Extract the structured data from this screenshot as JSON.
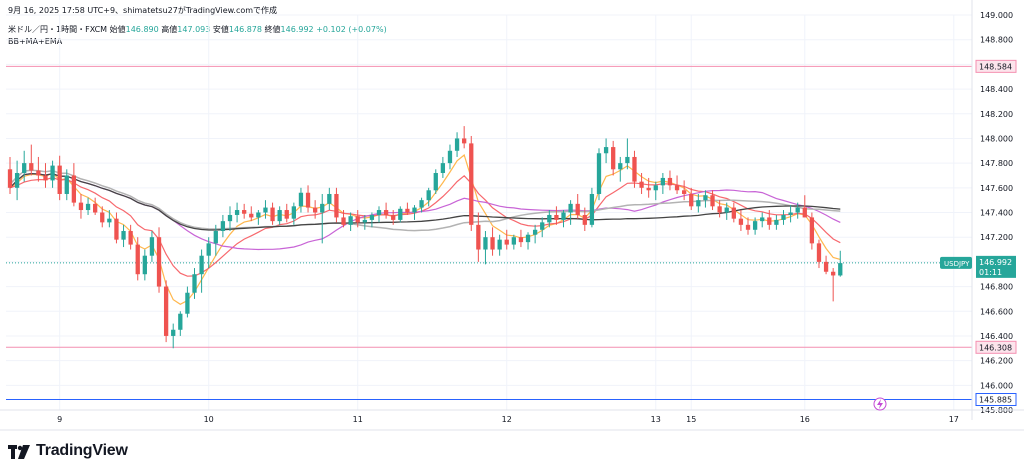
{
  "header": {
    "snapshot": "9月 16, 2025 17:58 UTC+9、shimatetsu27がTradingView.comで作成",
    "symbol": "米ドル／円・1時間・FXCM",
    "open_label": "始値",
    "open": "146.890",
    "high_label": "高値",
    "high": "147.093",
    "low_label": "安値",
    "low": "146.878",
    "close_label": "終値",
    "close": "146.992",
    "change": "+0.102 (+0.07%)",
    "indicators": "BB+MA+EMA"
  },
  "footer": {
    "brand": "TradingView"
  },
  "colors": {
    "up": "#26a69a",
    "down": "#ef5350",
    "hline_pink": "#f48fb1",
    "hline_blue": "#2962ff",
    "price_tag": "#26a69a"
  },
  "icon": "lightning-icon",
  "chart_data": {
    "type": "candlestick",
    "symbol": "USDJPY",
    "ylim": [
      145.8,
      149.0
    ],
    "xlim": [
      0,
      135
    ],
    "y_ticks": [
      "149.000",
      "148.800",
      "148.600",
      "148.400",
      "148.200",
      "148.000",
      "147.800",
      "147.600",
      "147.400",
      "147.200",
      "147.000",
      "146.800",
      "146.600",
      "146.400",
      "146.200",
      "146.000",
      "145.800"
    ],
    "x_ticks": [
      {
        "label": "9",
        "x": 7
      },
      {
        "label": "10",
        "x": 28
      },
      {
        "label": "11",
        "x": 49
      },
      {
        "label": "12",
        "x": 70
      },
      {
        "label": "13",
        "x": 91
      },
      {
        "label": "15",
        "x": 96
      },
      {
        "label": "16",
        "x": 112
      },
      {
        "label": "17",
        "x": 133
      }
    ],
    "horizontal_lines": [
      {
        "value": 148.584,
        "label": "148.584",
        "color": "#f48fb1"
      },
      {
        "value": 146.308,
        "label": "146.308",
        "color": "#f48fb1"
      },
      {
        "value": 145.885,
        "label": "145.885",
        "color": "#2962ff"
      }
    ],
    "current_price": {
      "value": 146.992,
      "label": "146.992",
      "symbol": "USDJPY",
      "countdown": "01:11"
    },
    "candles": [
      [
        147.75,
        147.85,
        147.55,
        147.6
      ],
      [
        147.6,
        147.82,
        147.5,
        147.72
      ],
      [
        147.72,
        147.9,
        147.65,
        147.8
      ],
      [
        147.8,
        147.95,
        147.7,
        147.74
      ],
      [
        147.74,
        147.85,
        147.65,
        147.7
      ],
      [
        147.7,
        147.8,
        147.6,
        147.66
      ],
      [
        147.66,
        147.82,
        147.6,
        147.78
      ],
      [
        147.78,
        147.86,
        147.5,
        147.55
      ],
      [
        147.55,
        147.75,
        147.5,
        147.7
      ],
      [
        147.7,
        147.8,
        147.45,
        147.48
      ],
      [
        147.48,
        147.55,
        147.35,
        147.42
      ],
      [
        147.42,
        147.52,
        147.38,
        147.47
      ],
      [
        147.47,
        147.52,
        147.38,
        147.4
      ],
      [
        147.4,
        147.45,
        147.28,
        147.32
      ],
      [
        147.32,
        147.42,
        147.28,
        147.35
      ],
      [
        147.35,
        147.4,
        147.15,
        147.18
      ],
      [
        147.18,
        147.3,
        147.12,
        147.25
      ],
      [
        147.25,
        147.3,
        147.1,
        147.14
      ],
      [
        147.14,
        147.2,
        146.85,
        146.9
      ],
      [
        146.9,
        147.1,
        146.85,
        147.05
      ],
      [
        147.05,
        147.25,
        147.0,
        147.2
      ],
      [
        147.2,
        147.28,
        146.75,
        146.8
      ],
      [
        146.8,
        146.85,
        146.35,
        146.4
      ],
      [
        146.4,
        146.5,
        146.3,
        146.45
      ],
      [
        146.45,
        146.6,
        146.4,
        146.58
      ],
      [
        146.58,
        146.8,
        146.55,
        146.75
      ],
      [
        146.75,
        146.95,
        146.7,
        146.9
      ],
      [
        146.9,
        147.1,
        146.75,
        147.05
      ],
      [
        147.05,
        147.2,
        146.95,
        147.15
      ],
      [
        147.15,
        147.3,
        147.05,
        147.25
      ],
      [
        147.25,
        147.38,
        147.2,
        147.33
      ],
      [
        147.33,
        147.45,
        147.25,
        147.38
      ],
      [
        147.38,
        147.48,
        147.32,
        147.42
      ],
      [
        147.42,
        147.47,
        147.35,
        147.39
      ],
      [
        147.39,
        147.45,
        147.33,
        147.36
      ],
      [
        147.36,
        147.42,
        147.3,
        147.4
      ],
      [
        147.4,
        147.5,
        147.35,
        147.44
      ],
      [
        147.44,
        147.48,
        147.3,
        147.33
      ],
      [
        147.33,
        147.45,
        147.3,
        147.42
      ],
      [
        147.42,
        147.47,
        147.32,
        147.35
      ],
      [
        147.35,
        147.48,
        147.3,
        147.45
      ],
      [
        147.45,
        147.6,
        147.4,
        147.56
      ],
      [
        147.56,
        147.62,
        147.4,
        147.44
      ],
      [
        147.44,
        147.5,
        147.35,
        147.4
      ],
      [
        147.4,
        147.55,
        147.15,
        147.47
      ],
      [
        147.47,
        147.6,
        147.42,
        147.55
      ],
      [
        147.55,
        147.6,
        147.32,
        147.36
      ],
      [
        147.36,
        147.42,
        147.28,
        147.3
      ],
      [
        147.3,
        147.4,
        147.25,
        147.37
      ],
      [
        147.37,
        147.42,
        147.28,
        147.32
      ],
      [
        147.32,
        147.38,
        147.26,
        147.34
      ],
      [
        147.34,
        147.4,
        147.28,
        147.38
      ],
      [
        147.38,
        147.45,
        147.32,
        147.42
      ],
      [
        147.42,
        147.48,
        147.35,
        147.38
      ],
      [
        147.38,
        147.42,
        147.3,
        147.34
      ],
      [
        147.34,
        147.45,
        147.32,
        147.43
      ],
      [
        147.43,
        147.48,
        147.38,
        147.4
      ],
      [
        147.4,
        147.46,
        147.34,
        147.44
      ],
      [
        147.44,
        147.52,
        147.4,
        147.5
      ],
      [
        147.5,
        147.6,
        147.45,
        147.58
      ],
      [
        147.58,
        147.75,
        147.55,
        147.72
      ],
      [
        147.72,
        147.85,
        147.68,
        147.8
      ],
      [
        147.8,
        147.95,
        147.75,
        147.9
      ],
      [
        147.9,
        148.05,
        147.85,
        148.0
      ],
      [
        148.0,
        148.1,
        147.92,
        147.96
      ],
      [
        147.96,
        148.02,
        147.25,
        147.3
      ],
      [
        147.3,
        147.4,
        147.0,
        147.1
      ],
      [
        147.1,
        147.25,
        146.98,
        147.2
      ],
      [
        147.2,
        147.28,
        147.05,
        147.1
      ],
      [
        147.1,
        147.22,
        147.05,
        147.18
      ],
      [
        147.18,
        147.26,
        147.1,
        147.14
      ],
      [
        147.14,
        147.22,
        147.1,
        147.2
      ],
      [
        147.2,
        147.26,
        147.12,
        147.16
      ],
      [
        147.16,
        147.24,
        147.1,
        147.22
      ],
      [
        147.22,
        147.3,
        147.15,
        147.26
      ],
      [
        147.26,
        147.36,
        147.2,
        147.32
      ],
      [
        147.32,
        147.42,
        147.28,
        147.38
      ],
      [
        147.38,
        147.45,
        147.3,
        147.34
      ],
      [
        147.34,
        147.42,
        147.28,
        147.4
      ],
      [
        147.4,
        147.5,
        147.3,
        147.47
      ],
      [
        147.47,
        147.55,
        147.35,
        147.38
      ],
      [
        147.38,
        147.44,
        147.25,
        147.3
      ],
      [
        147.3,
        147.6,
        147.28,
        147.55
      ],
      [
        147.55,
        147.92,
        147.5,
        147.88
      ],
      [
        147.88,
        148.0,
        147.8,
        147.93
      ],
      [
        147.93,
        147.98,
        147.7,
        147.75
      ],
      [
        147.75,
        147.85,
        147.65,
        147.8
      ],
      [
        147.8,
        148.0,
        147.75,
        147.85
      ],
      [
        147.85,
        147.9,
        147.6,
        147.65
      ],
      [
        147.65,
        147.72,
        147.55,
        147.6
      ],
      [
        147.6,
        147.68,
        147.52,
        147.58
      ],
      [
        147.58,
        147.65,
        147.5,
        147.62
      ],
      [
        147.62,
        147.72,
        147.55,
        147.68
      ],
      [
        147.68,
        147.74,
        147.58,
        147.62
      ],
      [
        147.62,
        147.7,
        147.55,
        147.58
      ],
      [
        147.58,
        147.66,
        147.5,
        147.55
      ],
      [
        147.55,
        147.6,
        147.42,
        147.45
      ],
      [
        147.45,
        147.55,
        147.4,
        147.5
      ],
      [
        147.5,
        147.58,
        147.44,
        147.54
      ],
      [
        147.54,
        147.58,
        147.42,
        147.45
      ],
      [
        147.45,
        147.5,
        147.36,
        147.4
      ],
      [
        147.4,
        147.48,
        147.34,
        147.44
      ],
      [
        147.44,
        147.48,
        147.32,
        147.35
      ],
      [
        147.35,
        147.42,
        147.25,
        147.3
      ],
      [
        147.3,
        147.36,
        147.22,
        147.26
      ],
      [
        147.26,
        147.36,
        147.22,
        147.33
      ],
      [
        147.33,
        147.4,
        147.28,
        147.36
      ],
      [
        147.36,
        147.42,
        147.26,
        147.3
      ],
      [
        147.3,
        147.38,
        147.26,
        147.34
      ],
      [
        147.34,
        147.42,
        147.3,
        147.38
      ],
      [
        147.38,
        147.46,
        147.32,
        147.4
      ],
      [
        147.4,
        147.48,
        147.35,
        147.44
      ],
      [
        147.44,
        147.54,
        147.38,
        147.36
      ],
      [
        147.36,
        147.4,
        147.1,
        147.15
      ],
      [
        147.15,
        147.18,
        146.95,
        147.0
      ],
      [
        147.0,
        147.05,
        146.9,
        146.92
      ],
      [
        146.92,
        146.95,
        146.68,
        146.89
      ],
      [
        146.89,
        147.09,
        146.88,
        146.99
      ]
    ]
  }
}
